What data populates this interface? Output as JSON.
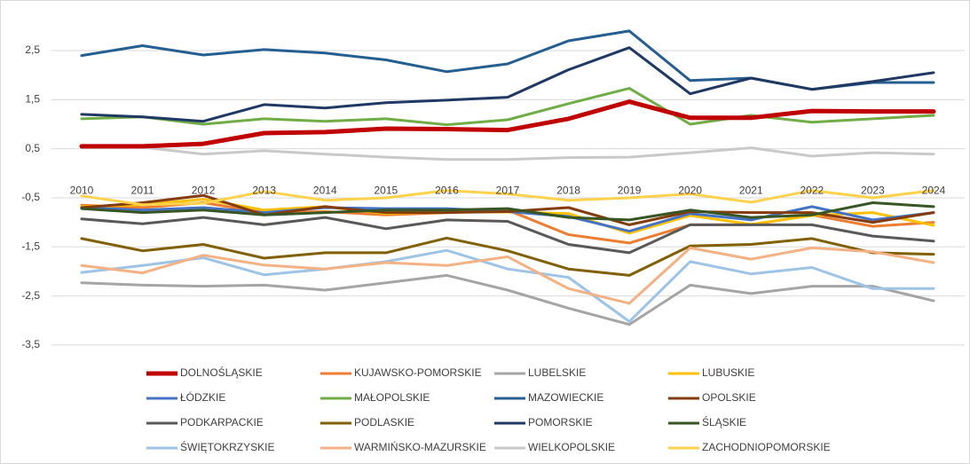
{
  "chart_data": {
    "type": "line",
    "categories": [
      "2010",
      "2011",
      "2012",
      "2013",
      "2014",
      "2015",
      "2016",
      "2017",
      "2018",
      "2019",
      "2020",
      "2021",
      "2022",
      "2023",
      "2024"
    ],
    "ylim": [
      -3.7,
      3.35
    ],
    "yticks": [
      {
        "value": 2.5,
        "label": "2,5"
      },
      {
        "value": 1.5,
        "label": "1,5"
      },
      {
        "value": 0.5,
        "label": "0,5"
      },
      {
        "value": -0.5,
        "label": "-0,5"
      },
      {
        "value": -1.5,
        "label": "-1,5"
      },
      {
        "value": -2.5,
        "label": "-2,5"
      },
      {
        "value": -3.5,
        "label": "-3,5"
      }
    ],
    "grid": true,
    "series": [
      {
        "name": "DOLNOŚLĄSKIE",
        "color": "#c00000",
        "values": [
          0.55,
          0.55,
          0.6,
          0.82,
          0.84,
          0.91,
          0.9,
          0.88,
          1.11,
          1.46,
          1.13,
          1.13,
          1.27,
          1.26,
          1.26
        ]
      },
      {
        "name": "KUJAWSKO-POMORSKIE",
        "color": "#ed7d31",
        "values": [
          -0.65,
          -0.7,
          -0.6,
          -0.8,
          -0.78,
          -0.85,
          -0.8,
          -0.75,
          -1.25,
          -1.42,
          -1.05,
          -1.05,
          -0.85,
          -1.08,
          -1.0
        ]
      },
      {
        "name": "LUBELSKIE",
        "color": "#a5a5a5",
        "values": [
          -2.23,
          -2.28,
          -2.3,
          -2.28,
          -2.38,
          -2.23,
          -2.08,
          -2.38,
          -2.75,
          -3.08,
          -2.28,
          -2.45,
          -2.3,
          -2.3,
          -2.6
        ]
      },
      {
        "name": "LUBUSKIE",
        "color": "#ffc000",
        "values": [
          -0.68,
          -0.64,
          -0.53,
          -0.75,
          -0.68,
          -0.82,
          -0.79,
          -0.79,
          -0.82,
          -1.22,
          -0.86,
          -1.04,
          -0.86,
          -0.8,
          -1.06
        ]
      },
      {
        "name": "ŁÓDZKIE",
        "color": "#4472c4",
        "values": [
          -0.7,
          -0.75,
          -0.7,
          -0.8,
          -0.7,
          -0.72,
          -0.72,
          -0.78,
          -0.88,
          -1.18,
          -0.82,
          -0.95,
          -0.68,
          -0.95,
          -0.8
        ]
      },
      {
        "name": "MAŁOPOLSKIE",
        "color": "#70ad47",
        "values": [
          1.11,
          1.15,
          1.0,
          1.11,
          1.06,
          1.11,
          0.99,
          1.09,
          1.42,
          1.73,
          1.0,
          1.18,
          1.04,
          1.11,
          1.18
        ]
      },
      {
        "name": "MAZOWIECKIE",
        "color": "#255e91",
        "values": [
          2.4,
          2.6,
          2.41,
          2.52,
          2.45,
          2.31,
          2.07,
          2.23,
          2.7,
          2.9,
          1.89,
          1.94,
          1.71,
          1.85,
          1.85
        ]
      },
      {
        "name": "OPOLSKIE",
        "color": "#843c0c",
        "values": [
          -0.7,
          -0.6,
          -0.45,
          -0.85,
          -0.68,
          -0.8,
          -0.8,
          -0.78,
          -0.7,
          -1.05,
          -0.78,
          -0.8,
          -0.8,
          -1.0,
          -0.8
        ]
      },
      {
        "name": "PODKARPACKIE",
        "color": "#595959",
        "values": [
          -0.93,
          -1.03,
          -0.9,
          -1.05,
          -0.9,
          -1.13,
          -0.95,
          -0.98,
          -1.45,
          -1.62,
          -1.05,
          -1.05,
          -1.05,
          -1.28,
          -1.38
        ]
      },
      {
        "name": "PODLASKIE",
        "color": "#806000",
        "values": [
          -1.33,
          -1.58,
          -1.45,
          -1.73,
          -1.62,
          -1.62,
          -1.32,
          -1.58,
          -1.95,
          -2.08,
          -1.48,
          -1.45,
          -1.33,
          -1.62,
          -1.65
        ]
      },
      {
        "name": "POMORSKIE",
        "color": "#1f3864",
        "values": [
          1.2,
          1.15,
          1.06,
          1.4,
          1.33,
          1.44,
          1.49,
          1.55,
          2.11,
          2.56,
          1.62,
          1.94,
          1.71,
          1.87,
          2.05
        ]
      },
      {
        "name": "ŚLĄSKIE",
        "color": "#375623",
        "values": [
          -0.72,
          -0.8,
          -0.75,
          -0.85,
          -0.8,
          -0.75,
          -0.75,
          -0.72,
          -0.9,
          -0.95,
          -0.75,
          -0.9,
          -0.85,
          -0.6,
          -0.68
        ]
      },
      {
        "name": "ŚWIĘTOKRZYSKIE",
        "color": "#9dc3e6",
        "values": [
          -2.02,
          -1.88,
          -1.72,
          -2.07,
          -1.95,
          -1.8,
          -1.57,
          -1.95,
          -2.12,
          -3.02,
          -1.8,
          -2.05,
          -1.92,
          -2.35,
          -2.35
        ]
      },
      {
        "name": "WARMIŃSKO-MAZURSKIE",
        "color": "#f4b183",
        "values": [
          -1.88,
          -2.03,
          -1.67,
          -1.87,
          -1.95,
          -1.82,
          -1.88,
          -1.7,
          -2.35,
          -2.65,
          -1.52,
          -1.75,
          -1.52,
          -1.6,
          -1.82
        ]
      },
      {
        "name": "WIELKOPOLSKIE",
        "color": "#c9c9c9",
        "values": [
          0.52,
          0.53,
          0.39,
          0.46,
          0.39,
          0.33,
          0.28,
          0.28,
          0.32,
          0.33,
          0.42,
          0.52,
          0.35,
          0.42,
          0.39
        ]
      },
      {
        "name": "ZACHODNIOPOMORSKIE",
        "color": "#ffd24d",
        "values": [
          -0.46,
          -0.64,
          -0.61,
          -0.37,
          -0.55,
          -0.5,
          -0.35,
          -0.42,
          -0.55,
          -0.5,
          -0.42,
          -0.59,
          -0.35,
          -0.5,
          -0.35
        ]
      }
    ]
  }
}
